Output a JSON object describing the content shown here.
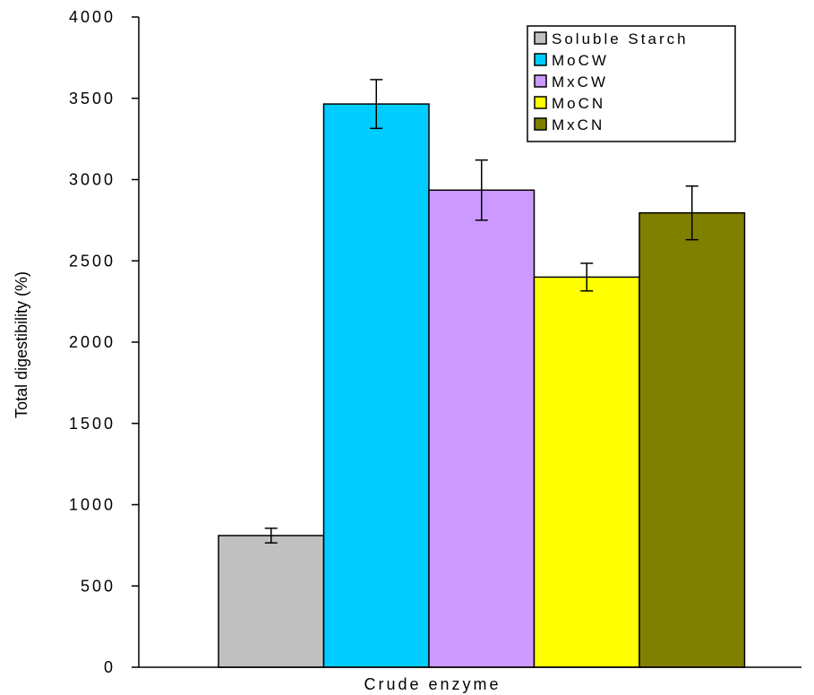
{
  "chart_data": {
    "type": "bar",
    "title": "",
    "xlabel": "Crude enzyme",
    "ylabel": "Total digestibility (%)",
    "ylim": [
      0,
      4000
    ],
    "yticks": [
      0,
      500,
      1000,
      1500,
      2000,
      2500,
      3000,
      3500,
      4000
    ],
    "ytick_labels": [
      "0",
      "500",
      "1000",
      "1500",
      "2000",
      "2500",
      "3000",
      "3500",
      "4000"
    ],
    "grid": false,
    "legend_position": "top-right",
    "series": [
      {
        "name": "Soluble Starch",
        "value": 810,
        "error": 45,
        "color": "#c0c0c0"
      },
      {
        "name": "MoCW",
        "value": 3465,
        "error": 150,
        "color": "#00ccff"
      },
      {
        "name": "MxCW",
        "value": 2935,
        "error": 185,
        "color": "#cc99ff"
      },
      {
        "name": "MoCN",
        "value": 2400,
        "error": 85,
        "color": "#ffff00"
      },
      {
        "name": "MxCN",
        "value": 2795,
        "error": 165,
        "color": "#808000"
      }
    ]
  }
}
